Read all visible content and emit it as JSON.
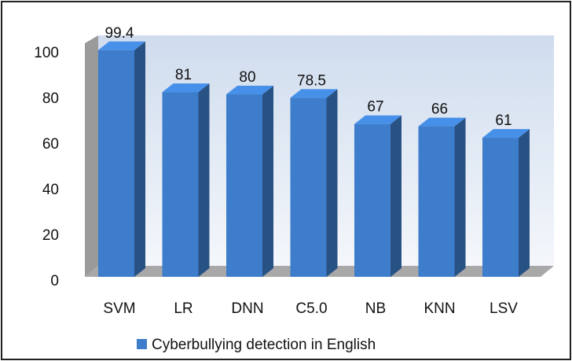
{
  "chart_data": {
    "type": "bar",
    "categories": [
      "SVM",
      "LR",
      "DNN",
      "C5.0",
      "NB",
      "KNN",
      "LSV"
    ],
    "series": [
      {
        "name": "Cyberbullying detection in English",
        "color": "#3d7dcb",
        "values": [
          99.4,
          81,
          80,
          78.5,
          67,
          66,
          61
        ]
      }
    ],
    "ylim": [
      0,
      100
    ],
    "yticks": [
      0,
      20,
      40,
      60,
      80,
      100
    ],
    "legend": "bottom"
  }
}
